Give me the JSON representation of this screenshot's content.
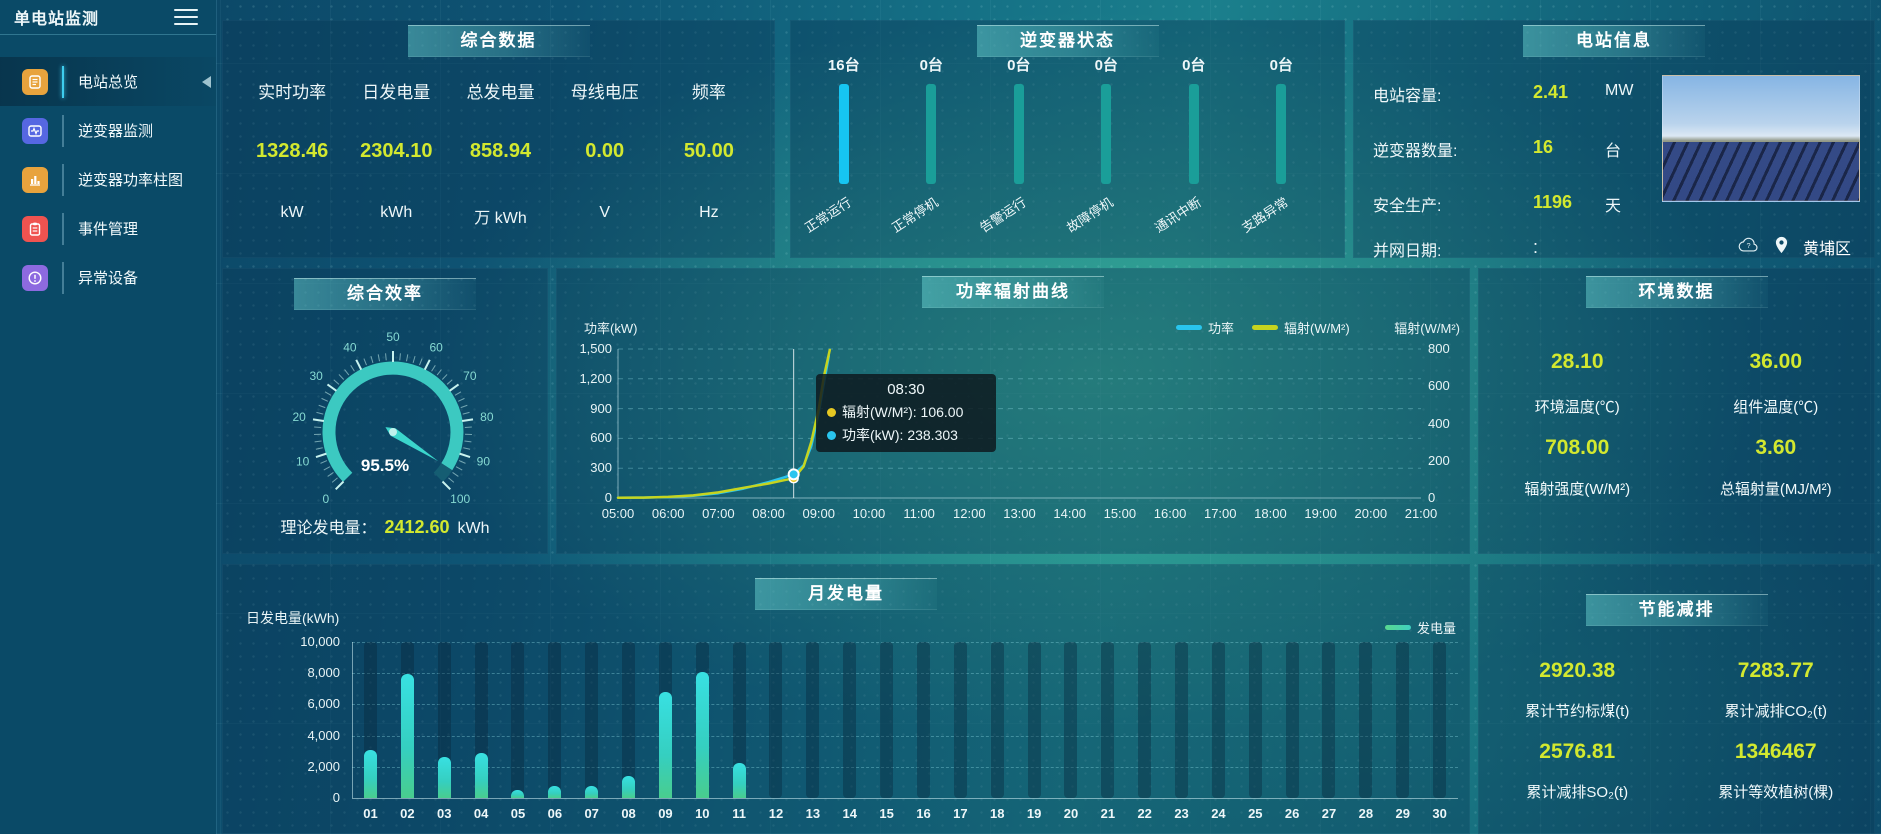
{
  "app": {
    "title": "单电站监测"
  },
  "sidebar": {
    "items": [
      {
        "label": "电站总览",
        "icon": "doc-icon",
        "color": "#e8a33d",
        "active": true
      },
      {
        "label": "逆变器监测",
        "icon": "monitor-icon",
        "color": "#5667e2",
        "active": false
      },
      {
        "label": "逆变器功率柱图",
        "icon": "bar-chart-icon",
        "color": "#e8a33d",
        "active": false
      },
      {
        "label": "事件管理",
        "icon": "clipboard-icon",
        "color": "#ef5350",
        "active": false
      },
      {
        "label": "异常设备",
        "icon": "alert-icon",
        "color": "#8d6ae0",
        "active": false
      }
    ]
  },
  "panels": {
    "overview": {
      "title": "综合数据",
      "columns": [
        {
          "label": "实时功率",
          "value": "1328.46",
          "unit": "kW"
        },
        {
          "label": "日发电量",
          "value": "2304.10",
          "unit": "kWh"
        },
        {
          "label": "总发电量",
          "value": "858.94",
          "unit": "万 kWh"
        },
        {
          "label": "母线电压",
          "value": "0.00",
          "unit": "V"
        },
        {
          "label": "频率",
          "value": "50.00",
          "unit": "Hz"
        }
      ]
    },
    "station_info": {
      "title": "电站信息",
      "rows": [
        {
          "label": "电站容量:",
          "value": "2.41",
          "unit": "MW"
        },
        {
          "label": "逆变器数量:",
          "value": "16",
          "unit": "台"
        },
        {
          "label": "安全生产:",
          "value": "1196",
          "unit": "天"
        },
        {
          "label": "并网日期:",
          "value": ":",
          "unit": ""
        }
      ],
      "location": "黄埔区"
    },
    "efficiency": {
      "title": "综合效率",
      "theory_label": "理论发电量：",
      "theory_value": "2412.60",
      "theory_unit": "kWh"
    },
    "environment": {
      "title": "环境数据",
      "cells": [
        {
          "value": "28.10",
          "label": "环境温度(℃)"
        },
        {
          "value": "36.00",
          "label": "组件温度(℃)"
        },
        {
          "value": "708.00",
          "label": "辐射强度(W/M²)"
        },
        {
          "value": "3.60",
          "label": "总辐射量(MJ/M²)"
        }
      ]
    },
    "saving": {
      "title": "节能减排",
      "cells": [
        {
          "value": "2920.38",
          "label": "累计节约标煤(t)"
        },
        {
          "value": "7283.77",
          "label": "累计减排CO₂(t)"
        },
        {
          "value": "2576.81",
          "label": "累计减排SO₂(t)"
        },
        {
          "value": "1346467",
          "label": "累计等效植树(棵)"
        }
      ]
    }
  },
  "chart_data": [
    {
      "id": "power-radiation-curve",
      "type": "line",
      "title": "功率辐射曲线",
      "legend": [
        {
          "name": "功率",
          "color": "#29c5ee"
        },
        {
          "name": "辐射(W/M²)",
          "color": "#c6d41f"
        }
      ],
      "left_axis": {
        "label": "功率(kW)",
        "max": 1500,
        "ticks": [
          "1,500",
          "1,200",
          "900",
          "600",
          "300",
          "0"
        ]
      },
      "right_axis": {
        "label": "辐射(W/M²)",
        "max": 800,
        "ticks": [
          "800",
          "600",
          "400",
          "200",
          "0"
        ]
      },
      "x_labels": [
        "05:00",
        "06:00",
        "07:00",
        "08:00",
        "09:00",
        "10:00",
        "11:00",
        "12:00",
        "13:00",
        "14:00",
        "15:00",
        "16:00",
        "17:00",
        "18:00",
        "19:00",
        "20:00",
        "21:00"
      ],
      "x_range": [
        5,
        21
      ],
      "series": [
        {
          "name": "功率",
          "axis": "left",
          "color": "#29c5ee",
          "points": [
            [
              5,
              2
            ],
            [
              5.5,
              4
            ],
            [
              6,
              10
            ],
            [
              6.5,
              22
            ],
            [
              7,
              48
            ],
            [
              7.5,
              95
            ],
            [
              8,
              160
            ],
            [
              8.3,
              205
            ],
            [
              8.5,
              238.3
            ],
            [
              8.7,
              330
            ],
            [
              8.85,
              520
            ],
            [
              9,
              860
            ],
            [
              9.1,
              1150
            ],
            [
              9.2,
              1430
            ]
          ]
        },
        {
          "name": "辐射(W/M²)",
          "axis": "right",
          "color": "#c6d41f",
          "points": [
            [
              5,
              1
            ],
            [
              5.5,
              2
            ],
            [
              6,
              6
            ],
            [
              6.5,
              14
            ],
            [
              7,
              30
            ],
            [
              7.5,
              55
            ],
            [
              8,
              78
            ],
            [
              8.3,
              95
            ],
            [
              8.5,
              106
            ],
            [
              8.7,
              170
            ],
            [
              8.85,
              300
            ],
            [
              9,
              480
            ],
            [
              9.1,
              650
            ],
            [
              9.22,
              795
            ]
          ]
        }
      ],
      "hover": {
        "t": 8.5,
        "power": 238.303,
        "radiation": 106
      },
      "tooltip": {
        "time": "08:30",
        "rows": [
          {
            "label": "辐射(W/M²)",
            "value": "106.00",
            "color": "#e6c822"
          },
          {
            "label": "功率(kW)",
            "value": "238.303",
            "color": "#29c5ee"
          }
        ]
      }
    },
    {
      "id": "monthly-generation",
      "type": "bar",
      "title": "月发电量",
      "axis_label": "日发电量(kWh)",
      "legend": "发电量",
      "y_max": 10000,
      "y_ticks": [
        "10,000",
        "8,000",
        "6,000",
        "4,000",
        "2,000",
        "0"
      ],
      "categories": [
        "01",
        "02",
        "03",
        "04",
        "05",
        "06",
        "07",
        "08",
        "09",
        "10",
        "11",
        "12",
        "13",
        "14",
        "15",
        "16",
        "17",
        "18",
        "19",
        "20",
        "21",
        "22",
        "23",
        "24",
        "25",
        "26",
        "27",
        "28",
        "29",
        "30"
      ],
      "values": [
        3100,
        7950,
        2600,
        2900,
        500,
        800,
        750,
        1400,
        6800,
        8100,
        2250,
        0,
        0,
        0,
        0,
        0,
        0,
        0,
        0,
        0,
        0,
        0,
        0,
        0,
        0,
        0,
        0,
        0,
        0,
        0
      ]
    },
    {
      "id": "efficiency-gauge",
      "type": "gauge",
      "title": "综合效率",
      "value": 95.5,
      "value_text": "95.5%",
      "min": 0,
      "max": 100,
      "tick_labels": [
        0,
        10,
        20,
        30,
        40,
        50,
        60,
        70,
        80,
        90,
        100
      ],
      "color": "#3cc9c1"
    },
    {
      "id": "inverter-status",
      "type": "bar",
      "title": "逆变器状态",
      "categories": [
        "正常运行",
        "正常停机",
        "告警运行",
        "故障停机",
        "通讯中断",
        "支路异常"
      ],
      "counts": [
        "16台",
        "0台",
        "0台",
        "0台",
        "0台",
        "0台"
      ],
      "values": [
        16,
        0,
        0,
        0,
        0,
        0
      ],
      "active_color": "#16c5f2",
      "inactive_color": "#1a9e99"
    }
  ]
}
